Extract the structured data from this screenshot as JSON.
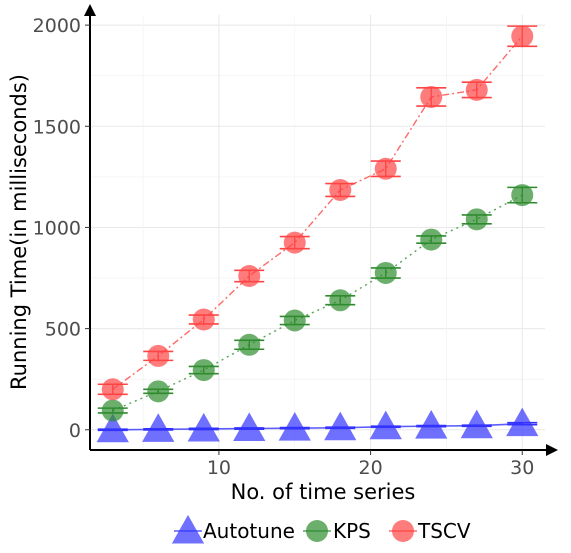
{
  "chart_data": {
    "type": "line",
    "title": "",
    "xlabel": "No. of time series",
    "ylabel": "Running Time(in milliseconds)",
    "xlim": [
      1.5,
      31.5
    ],
    "ylim": [
      -100,
      2050
    ],
    "x_ticks": [
      10,
      20,
      30
    ],
    "y_ticks": [
      0,
      500,
      1000,
      1500,
      2000
    ],
    "grid": true,
    "legend_position": "bottom",
    "x": [
      3,
      6,
      9,
      12,
      15,
      18,
      21,
      24,
      27,
      30
    ],
    "series": [
      {
        "name": "Autotune",
        "marker": "triangle",
        "color": "#3333ff",
        "values": [
          0,
          2,
          4,
          6,
          8,
          10,
          15,
          18,
          20,
          30
        ],
        "error": [
          3,
          3,
          3,
          3,
          3,
          3,
          3,
          3,
          3,
          5
        ]
      },
      {
        "name": "KPS",
        "marker": "circle",
        "color": "#2e8b2e",
        "values": [
          95,
          190,
          295,
          420,
          540,
          640,
          775,
          940,
          1040,
          1160
        ],
        "error": [
          12,
          10,
          18,
          22,
          20,
          22,
          25,
          18,
          22,
          38
        ]
      },
      {
        "name": "TSCV",
        "marker": "circle",
        "color": "#ff4444",
        "values": [
          200,
          365,
          545,
          760,
          925,
          1185,
          1290,
          1645,
          1680,
          1945
        ],
        "error": [
          25,
          22,
          22,
          28,
          30,
          32,
          38,
          45,
          38,
          50
        ]
      }
    ]
  }
}
